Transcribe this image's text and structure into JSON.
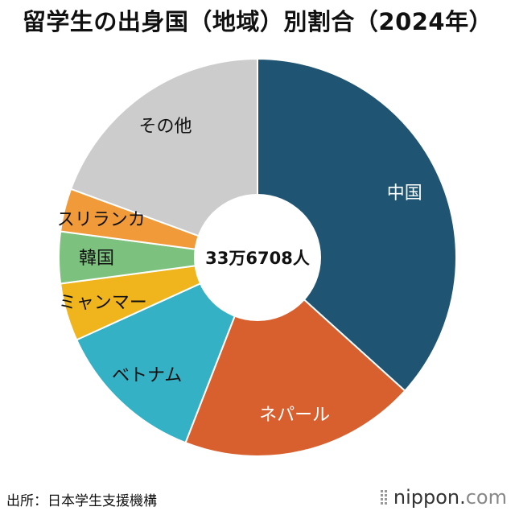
{
  "chart_data": {
    "type": "pie",
    "title": "留学生の出身国（地域）別割合（2024年）",
    "center_label": "33万6708人",
    "categories": [
      "中国",
      "ネパール",
      "ベトナム",
      "ミャンマー",
      "韓国",
      "スリランカ",
      "その他"
    ],
    "values": [
      36.7,
      19.2,
      12.3,
      4.7,
      4.2,
      3.5,
      19.4
    ],
    "colors": [
      "#1f5573",
      "#d8602f",
      "#34b1c4",
      "#f0b41d",
      "#7cc27e",
      "#f09a3a",
      "#cccccc"
    ],
    "label_colors": [
      "#ffffff",
      "#ffffff",
      "#111111",
      "#111111",
      "#111111",
      "#111111",
      "#111111"
    ]
  },
  "footer": {
    "source": "出所：日本学生支援機構",
    "brand_main": "nippon.",
    "brand_suffix": "com"
  }
}
